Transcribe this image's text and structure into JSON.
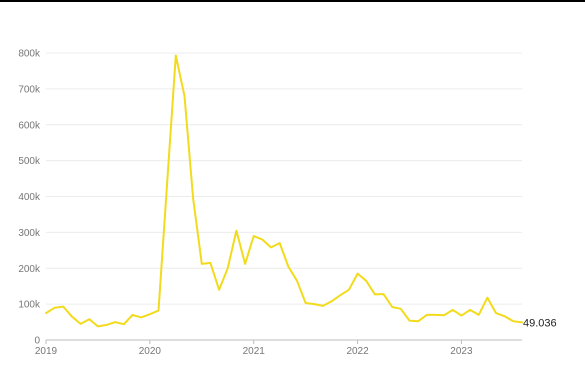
{
  "chart_data": {
    "type": "line",
    "title": "",
    "xlabel": "",
    "ylabel": "",
    "ylim": [
      0,
      800000
    ],
    "y_ticks": [
      0,
      100000,
      200000,
      300000,
      400000,
      500000,
      600000,
      700000,
      800000
    ],
    "y_tick_labels": [
      "0",
      "100k",
      "200k",
      "300k",
      "400k",
      "500k",
      "600k",
      "700k",
      "800k"
    ],
    "x_ticks": [
      "2019",
      "2020",
      "2021",
      "2022",
      "2023"
    ],
    "x_range": [
      "2019-01",
      "2023-08"
    ],
    "grid": true,
    "legend": "none",
    "line_color": "#f2db1c",
    "end_label": "49.036",
    "series": [
      {
        "x": [
          "2019-01",
          "2019-02",
          "2019-03",
          "2019-04",
          "2019-05",
          "2019-06",
          "2019-07",
          "2019-08",
          "2019-09",
          "2019-10",
          "2019-11",
          "2019-12",
          "2020-01",
          "2020-02",
          "2020-03",
          "2020-04",
          "2020-05",
          "2020-06",
          "2020-07",
          "2020-08",
          "2020-09",
          "2020-10",
          "2020-11",
          "2020-12",
          "2021-01",
          "2021-02",
          "2021-03",
          "2021-04",
          "2021-05",
          "2021-06",
          "2021-07",
          "2021-08",
          "2021-09",
          "2021-10",
          "2021-11",
          "2021-12",
          "2022-01",
          "2022-02",
          "2022-03",
          "2022-04",
          "2022-05",
          "2022-06",
          "2022-07",
          "2022-08",
          "2022-09",
          "2022-10",
          "2022-11",
          "2022-12",
          "2023-01",
          "2023-02",
          "2023-03",
          "2023-04",
          "2023-05",
          "2023-06",
          "2023-07",
          "2023-08"
        ],
        "values": [
          75000,
          90000,
          93000,
          65000,
          45000,
          58000,
          38000,
          42000,
          50000,
          44000,
          70000,
          63000,
          72000,
          82000,
          440000,
          793000,
          680000,
          395000,
          212000,
          215000,
          140000,
          200000,
          305000,
          212000,
          290000,
          280000,
          258000,
          270000,
          205000,
          165000,
          103000,
          100000,
          95000,
          108000,
          125000,
          140000,
          185000,
          165000,
          127000,
          128000,
          92000,
          87000,
          54000,
          52000,
          70000,
          70000,
          69000,
          84000,
          68000,
          84000,
          70000,
          118000,
          75000,
          66000,
          52000,
          49036
        ]
      }
    ]
  }
}
